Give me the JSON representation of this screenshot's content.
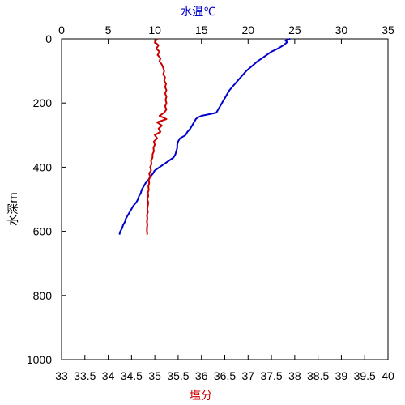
{
  "chart_data": {
    "type": "line",
    "top_axis": {
      "label": "水温℃",
      "lim": [
        0,
        35
      ],
      "ticks": [
        "0",
        "5",
        "10",
        "15",
        "20",
        "25",
        "30",
        "35"
      ],
      "color": "#0000cc"
    },
    "bottom_axis": {
      "label": "塩分",
      "lim": [
        33,
        40
      ],
      "ticks": [
        "33",
        "33.5",
        "34",
        "34.5",
        "35",
        "35.5",
        "36",
        "36.5",
        "37",
        "37.5",
        "38",
        "38.5",
        "39",
        "39.5",
        "40"
      ],
      "color": "#cc0000"
    },
    "left_axis": {
      "label": "水深m",
      "lim": [
        0,
        1000
      ],
      "inverted": true,
      "ticks": [
        "0",
        "200",
        "400",
        "600",
        "800",
        "1000"
      ]
    },
    "series": [
      {
        "axis": "top",
        "color": "#0000cc",
        "points": [
          [
            24.5,
            0
          ],
          [
            24.0,
            5
          ],
          [
            24.2,
            10
          ],
          [
            23.8,
            20
          ],
          [
            23.2,
            30
          ],
          [
            22.5,
            40
          ],
          [
            22.0,
            50
          ],
          [
            21.5,
            60
          ],
          [
            21.0,
            70
          ],
          [
            20.6,
            80
          ],
          [
            20.2,
            90
          ],
          [
            19.8,
            100
          ],
          [
            19.5,
            110
          ],
          [
            19.2,
            120
          ],
          [
            18.9,
            130
          ],
          [
            18.6,
            140
          ],
          [
            18.3,
            150
          ],
          [
            18.0,
            160
          ],
          [
            17.8,
            170
          ],
          [
            17.6,
            180
          ],
          [
            17.4,
            190
          ],
          [
            17.2,
            200
          ],
          [
            17.0,
            210
          ],
          [
            16.8,
            220
          ],
          [
            16.6,
            230
          ],
          [
            15.8,
            235
          ],
          [
            15.0,
            240
          ],
          [
            14.6,
            245
          ],
          [
            14.4,
            250
          ],
          [
            14.2,
            260
          ],
          [
            14.0,
            270
          ],
          [
            13.8,
            280
          ],
          [
            13.5,
            290
          ],
          [
            13.3,
            300
          ],
          [
            13.0,
            305
          ],
          [
            12.7,
            310
          ],
          [
            12.5,
            320
          ],
          [
            12.4,
            330
          ],
          [
            12.4,
            340
          ],
          [
            12.3,
            350
          ],
          [
            12.2,
            360
          ],
          [
            12.0,
            370
          ],
          [
            11.5,
            380
          ],
          [
            11.0,
            390
          ],
          [
            10.5,
            400
          ],
          [
            10.0,
            410
          ],
          [
            9.8,
            420
          ],
          [
            9.5,
            430
          ],
          [
            9.3,
            440
          ],
          [
            9.0,
            450
          ],
          [
            8.8,
            460
          ],
          [
            8.6,
            470
          ],
          [
            8.5,
            480
          ],
          [
            8.3,
            490
          ],
          [
            8.2,
            500
          ],
          [
            8.0,
            510
          ],
          [
            7.7,
            520
          ],
          [
            7.5,
            530
          ],
          [
            7.3,
            540
          ],
          [
            7.1,
            550
          ],
          [
            6.9,
            560
          ],
          [
            6.8,
            570
          ],
          [
            6.6,
            580
          ],
          [
            6.5,
            590
          ],
          [
            6.3,
            600
          ],
          [
            6.2,
            610
          ]
        ]
      },
      {
        "axis": "bottom",
        "color": "#cc0000",
        "points": [
          [
            35.05,
            0
          ],
          [
            35.0,
            10
          ],
          [
            35.08,
            20
          ],
          [
            35.03,
            30
          ],
          [
            35.1,
            40
          ],
          [
            35.06,
            50
          ],
          [
            35.12,
            60
          ],
          [
            35.1,
            70
          ],
          [
            35.15,
            80
          ],
          [
            35.18,
            90
          ],
          [
            35.2,
            100
          ],
          [
            35.18,
            110
          ],
          [
            35.22,
            120
          ],
          [
            35.2,
            130
          ],
          [
            35.24,
            140
          ],
          [
            35.22,
            150
          ],
          [
            35.25,
            160
          ],
          [
            35.22,
            170
          ],
          [
            35.25,
            180
          ],
          [
            35.23,
            190
          ],
          [
            35.25,
            200
          ],
          [
            35.22,
            210
          ],
          [
            35.25,
            220
          ],
          [
            35.2,
            230
          ],
          [
            35.1,
            240
          ],
          [
            35.25,
            250
          ],
          [
            35.05,
            260
          ],
          [
            35.15,
            270
          ],
          [
            35.08,
            280
          ],
          [
            35.12,
            290
          ],
          [
            35.0,
            300
          ],
          [
            35.05,
            310
          ],
          [
            34.98,
            320
          ],
          [
            35.0,
            330
          ],
          [
            34.97,
            340
          ],
          [
            34.98,
            350
          ],
          [
            34.95,
            360
          ],
          [
            34.95,
            370
          ],
          [
            34.92,
            380
          ],
          [
            34.93,
            390
          ],
          [
            34.9,
            400
          ],
          [
            34.92,
            410
          ],
          [
            34.88,
            420
          ],
          [
            34.9,
            430
          ],
          [
            34.87,
            440
          ],
          [
            34.88,
            450
          ],
          [
            34.86,
            460
          ],
          [
            34.87,
            470
          ],
          [
            34.85,
            480
          ],
          [
            34.86,
            490
          ],
          [
            34.84,
            500
          ],
          [
            34.86,
            510
          ],
          [
            34.85,
            520
          ],
          [
            34.84,
            530
          ],
          [
            34.85,
            540
          ],
          [
            34.83,
            550
          ],
          [
            34.84,
            560
          ],
          [
            34.83,
            570
          ],
          [
            34.84,
            580
          ],
          [
            34.83,
            590
          ],
          [
            34.83,
            600
          ],
          [
            34.84,
            610
          ]
        ]
      }
    ]
  }
}
